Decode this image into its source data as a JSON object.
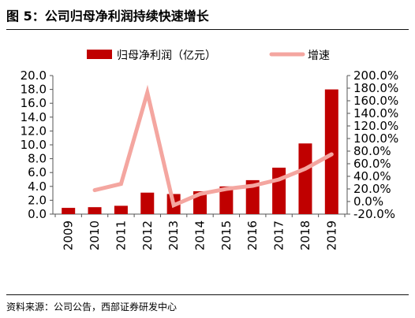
{
  "header": {
    "title": "图 5：公司归母净利润持续快速增长"
  },
  "footer": {
    "source": "资料来源：公司公告，西部证券研发中心"
  },
  "chart_data": {
    "type": "bar",
    "title": "图 5：公司归母净利润持续快速增长",
    "categories": [
      "2009",
      "2010",
      "2011",
      "2012",
      "2013",
      "2014",
      "2015",
      "2016",
      "2017",
      "2018",
      "2019"
    ],
    "series": [
      {
        "name": "归母净利润（亿元）",
        "type": "bar",
        "axis": "left",
        "values": [
          0.9,
          1.0,
          1.2,
          3.1,
          2.9,
          3.3,
          4.0,
          4.9,
          6.7,
          10.2,
          18.0
        ]
      },
      {
        "name": "增速",
        "type": "line",
        "axis": "right",
        "values": [
          null,
          18,
          28,
          173,
          -6,
          12,
          20,
          25,
          35,
          52,
          75
        ]
      }
    ],
    "y_left": {
      "min": 0,
      "max": 20,
      "step": 2,
      "ticks": [
        "0.0",
        "2.0",
        "4.0",
        "6.0",
        "8.0",
        "10.0",
        "12.0",
        "14.0",
        "16.0",
        "18.0",
        "20.0"
      ]
    },
    "y_right": {
      "min": -20,
      "max": 200,
      "step": 20,
      "ticks": [
        "-20.0%",
        "0.0%",
        "20.0%",
        "40.0%",
        "60.0%",
        "80.0%",
        "100.0%",
        "120.0%",
        "140.0%",
        "160.0%",
        "180.0%",
        "200.0%"
      ]
    },
    "colors": {
      "bar": "#c00000",
      "line": "#f4a6a0",
      "axis": "#555555"
    },
    "legend": "top",
    "grid": false
  }
}
